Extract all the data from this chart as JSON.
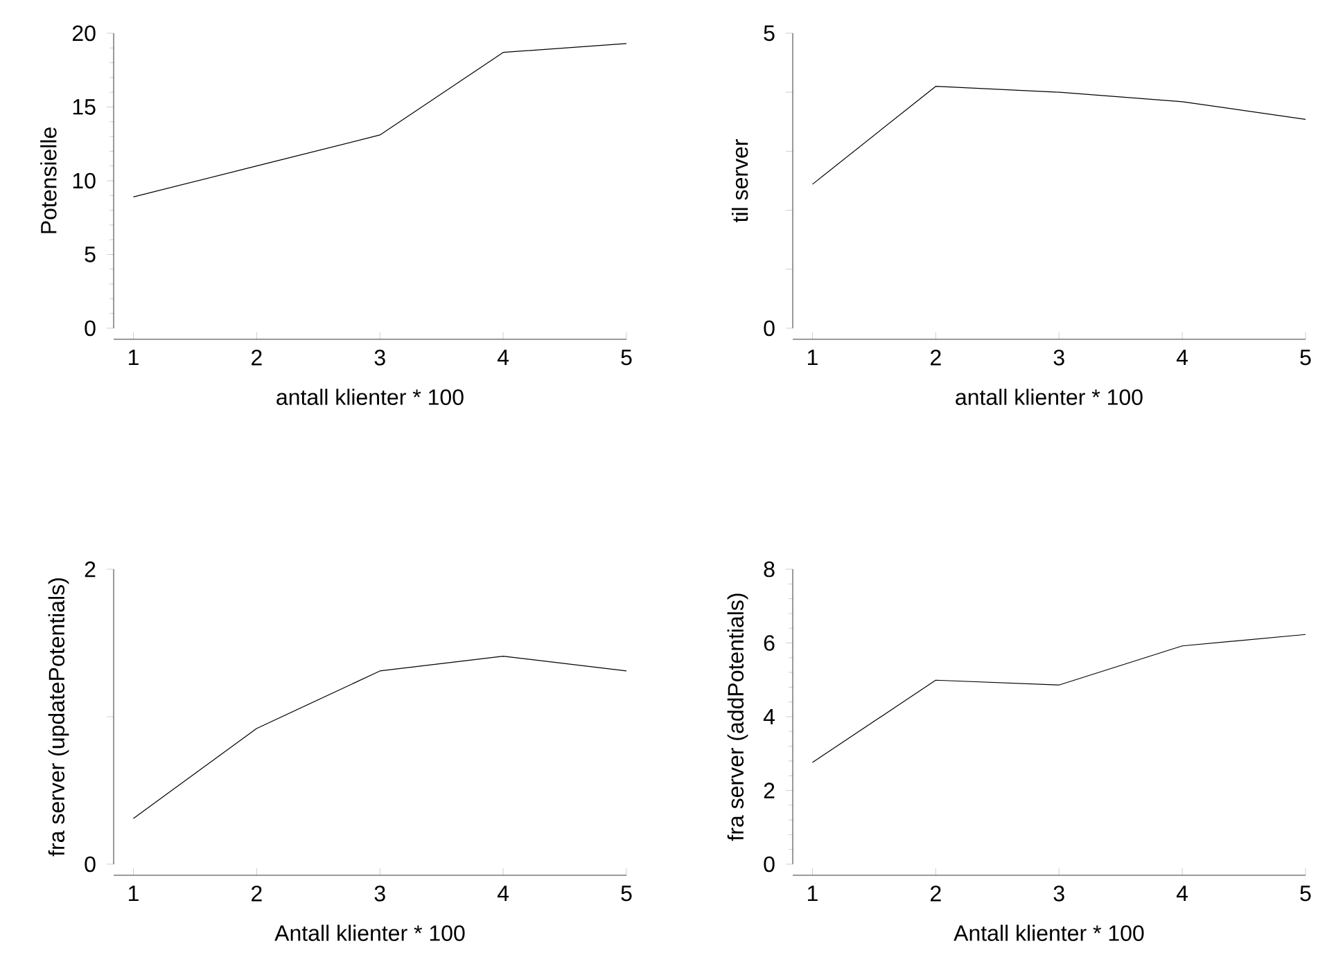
{
  "chart_data": [
    {
      "type": "line",
      "x": [
        1,
        2,
        3,
        4,
        5
      ],
      "values": [
        8.9,
        11.0,
        13.1,
        18.7,
        19.3
      ],
      "color": "#000000",
      "xlim": [
        0.84,
        5
      ],
      "ylim": [
        0,
        20
      ],
      "xticks": [
        1,
        2,
        3,
        4,
        5
      ],
      "yticks": [
        0,
        5,
        10,
        15,
        20
      ],
      "xlabel": "antall klienter * 100",
      "ylabel": "Potensielle",
      "marker": "none",
      "line_style": "solid"
    },
    {
      "type": "line",
      "x": [
        1,
        2,
        3,
        4,
        5
      ],
      "values": [
        2.44,
        4.1,
        4.0,
        3.84,
        3.54
      ],
      "color": "#000000",
      "xlim": [
        0.84,
        5
      ],
      "ylim": [
        0,
        5
      ],
      "xticks": [
        1,
        2,
        3,
        4,
        5
      ],
      "yticks": [
        0,
        {
          "value": 1,
          "label": null
        },
        {
          "value": 2,
          "label": null
        },
        {
          "value": 3,
          "label": null
        },
        {
          "value": 4,
          "label": null
        },
        5
      ],
      "xlabel": "antall klienter * 100",
      "ylabel": "til server",
      "marker": "none",
      "line_style": "solid"
    },
    {
      "type": "line",
      "x": [
        1,
        2,
        3,
        4,
        5
      ],
      "values": [
        0.31,
        0.92,
        1.31,
        1.41,
        1.31
      ],
      "color": "#000000",
      "xlim": [
        0.84,
        5
      ],
      "ylim": [
        0,
        2
      ],
      "xticks": [
        1,
        2,
        3,
        4,
        5
      ],
      "yticks": [
        0,
        {
          "value": 1,
          "label": null
        },
        2
      ],
      "xlabel": "Antall klienter * 100",
      "ylabel": "fra server (updatePotentials)",
      "marker": "none",
      "line_style": "solid"
    },
    {
      "type": "line",
      "x": [
        1,
        2,
        3,
        4,
        5
      ],
      "values": [
        2.76,
        4.99,
        4.86,
        5.92,
        6.23
      ],
      "color": "#000000",
      "xlim": [
        0.84,
        5
      ],
      "ylim": [
        0,
        8
      ],
      "xticks": [
        1,
        2,
        3,
        4,
        5
      ],
      "yticks": [
        0,
        2,
        4,
        6,
        8
      ],
      "xlabel": "Antall klienter * 100",
      "ylabel": "fra server (addPotentials)",
      "marker": "none",
      "line_style": "solid"
    }
  ]
}
